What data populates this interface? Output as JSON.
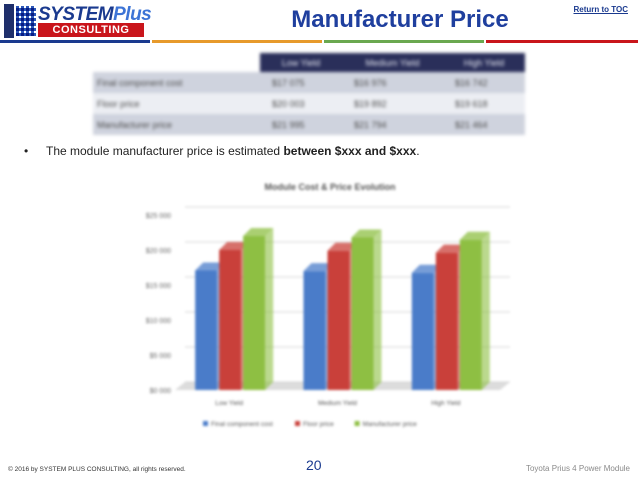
{
  "header": {
    "logo_line1_a": "SYSTEM",
    "logo_line1_b": "Plus",
    "logo_line2": "CONSULTING",
    "title": "Manufacturer Price",
    "toc_link": "Return to TOC"
  },
  "table": {
    "columns": [
      "Low Yield",
      "Medium Yield",
      "High Yield"
    ],
    "rows": [
      {
        "label": "Final component cost",
        "values": [
          "$17 075",
          "$16 976",
          "$16 742"
        ]
      },
      {
        "label": "Floor price",
        "values": [
          "$20 003",
          "$19 892",
          "$19 618"
        ]
      },
      {
        "label": "Manufacturer price",
        "values": [
          "$21 995",
          "$21 794",
          "$21 464"
        ]
      }
    ]
  },
  "bullet": {
    "prefix": "The module manufacturer price is estimated ",
    "bold": "between $xxx and $xxx",
    "suffix": "."
  },
  "chart_data": {
    "type": "bar",
    "title": "Module Cost & Price Evolution",
    "categories": [
      "Low Yield",
      "Medium Yield",
      "High Yield"
    ],
    "series": [
      {
        "name": "Final component cost",
        "color": "#4a7cc9",
        "values": [
          17075,
          16976,
          16742
        ]
      },
      {
        "name": "Floor price",
        "color": "#c9403a",
        "values": [
          20003,
          19892,
          19618
        ]
      },
      {
        "name": "Manufacturer price",
        "color": "#8ebf43",
        "values": [
          21995,
          21794,
          21464
        ]
      }
    ],
    "ylim": [
      0,
      25000
    ],
    "yticks": [
      "$0 000",
      "$5 000",
      "$10 000",
      "$15 000",
      "$20 000",
      "$25 000"
    ],
    "legend": "bottom",
    "grid": true
  },
  "footer": {
    "copyright": "© 2016 by SYSTEM PLUS CONSULTING, all rights reserved.",
    "page": "20",
    "doc": "Toyota Prius 4 Power Module"
  }
}
